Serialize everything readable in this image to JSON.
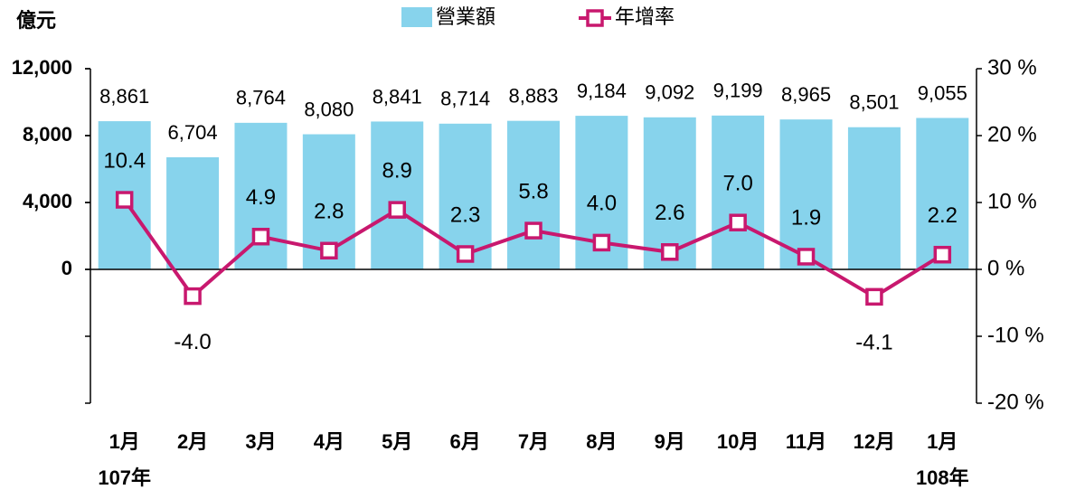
{
  "chart_data": {
    "type": "bar-line",
    "ylabel": "億元",
    "categories": [
      "1月",
      "2月",
      "3月",
      "4月",
      "5月",
      "6月",
      "7月",
      "8月",
      "9月",
      "10月",
      "11月",
      "12月",
      "1月"
    ],
    "x_sublabels": [
      "107年",
      "108年"
    ],
    "series": [
      {
        "name": "營業額",
        "type": "bar",
        "color": "#87d3ec",
        "values": [
          8861,
          6704,
          8764,
          8080,
          8841,
          8714,
          8883,
          9184,
          9092,
          9199,
          8965,
          8501,
          9055
        ],
        "value_labels": [
          "8,861",
          "6,704",
          "8,764",
          "8,080",
          "8,841",
          "8,714",
          "8,883",
          "9,184",
          "9,092",
          "9,199",
          "8,965",
          "8,501",
          "9,055"
        ]
      },
      {
        "name": "年增率",
        "type": "line",
        "axis": "y2",
        "color": "#c8186e",
        "values": [
          10.4,
          -4.0,
          4.9,
          2.8,
          8.9,
          2.3,
          5.8,
          4.0,
          2.6,
          7.0,
          1.9,
          -4.1,
          2.2
        ],
        "value_labels": [
          "10.4",
          "-4.0",
          "4.9",
          "2.8",
          "8.9",
          "2.3",
          "5.8",
          "4.0",
          "2.6",
          "7.0",
          "1.9",
          "-4.1",
          "2.2"
        ]
      }
    ],
    "ylim": [
      -8000,
      12000
    ],
    "yticks": [
      0,
      {
        "value": 4000,
        "label": "4,000"
      },
      {
        "value": 8000,
        "label": "8,000"
      },
      {
        "value": 12000,
        "label": "12,000"
      }
    ],
    "y2lim": [
      -20,
      30
    ],
    "y2ticks": [
      {
        "value": -20,
        "label": "-20 %"
      },
      {
        "value": -10,
        "label": "-10 %"
      },
      {
        "value": 0,
        "label": "0 %"
      },
      {
        "value": 10,
        "label": "10 %"
      },
      {
        "value": 20,
        "label": "20 %"
      },
      {
        "value": 30,
        "label": "30 %"
      }
    ],
    "legend": "top"
  }
}
